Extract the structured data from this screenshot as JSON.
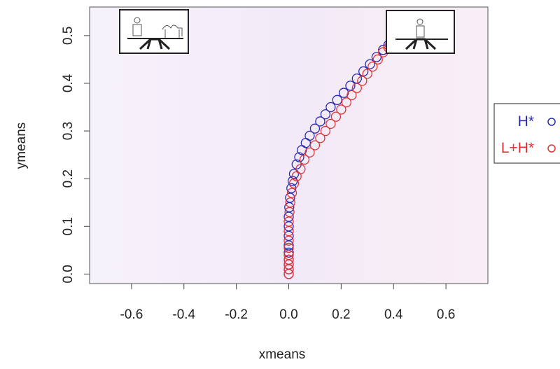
{
  "chart_data": {
    "type": "scatter",
    "xlabel": "xmeans",
    "ylabel": "ymeans",
    "xlim": [
      -0.76,
      0.76
    ],
    "ylim": [
      -0.02,
      0.56
    ],
    "xticks": [
      -0.6,
      -0.4,
      -0.2,
      {
        "value": 0,
        "label": "0.0"
      },
      0.2,
      0.4,
      0.6
    ],
    "yticks": [
      {
        "value": 0,
        "label": "0.0"
      },
      0.1,
      0.2,
      0.3,
      0.4,
      0.5
    ],
    "series": [
      {
        "name": "H*",
        "color": "#2b2bb0",
        "x": [
          0,
          0,
          0,
          0,
          0,
          0,
          0,
          0,
          0,
          0.002,
          0.005,
          0.01,
          0.015,
          0.02,
          0.03,
          0.04,
          0.05,
          0.065,
          0.08,
          0.1,
          0.12,
          0.14,
          0.16,
          0.185,
          0.21,
          0.235,
          0.26,
          0.285,
          0.31,
          0.335,
          0.36,
          0.38
        ],
        "values": [
          0,
          0.01,
          0.02,
          0.03,
          0.045,
          0.06,
          0.08,
          0.1,
          0.12,
          0.14,
          0.16,
          0.18,
          0.195,
          0.21,
          0.23,
          0.245,
          0.26,
          0.275,
          0.29,
          0.305,
          0.32,
          0.335,
          0.35,
          0.365,
          0.38,
          0.395,
          0.41,
          0.425,
          0.44,
          0.455,
          0.47,
          0.48
        ]
      },
      {
        "name": "L+H*",
        "color": "#e03535",
        "x": [
          0,
          0,
          0,
          0,
          0,
          0,
          0,
          0,
          0,
          0.003,
          0.006,
          0.012,
          0.02,
          0.03,
          0.045,
          0.06,
          0.08,
          0.1,
          0.12,
          0.14,
          0.16,
          0.18,
          0.2,
          0.22,
          0.24,
          0.26,
          0.28,
          0.3,
          0.32,
          0.34,
          0.36,
          0.38
        ],
        "values": [
          0,
          0.01,
          0.02,
          0.03,
          0.04,
          0.055,
          0.07,
          0.09,
          0.11,
          0.13,
          0.15,
          0.17,
          0.19,
          0.205,
          0.22,
          0.24,
          0.255,
          0.27,
          0.285,
          0.3,
          0.315,
          0.33,
          0.345,
          0.36,
          0.375,
          0.39,
          0.405,
          0.42,
          0.435,
          0.45,
          0.465,
          0.475
        ]
      }
    ]
  }
}
